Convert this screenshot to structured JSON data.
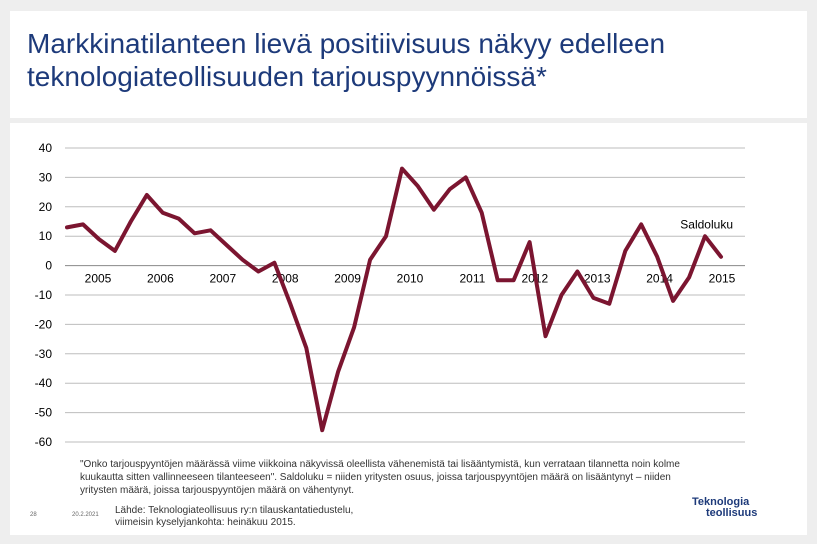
{
  "header": {
    "title_line1": "Markkinatilanteen lievä positiivisuus näkyy edelleen",
    "title_line2": "teknologiateollisuuden tarjouspyynnöissä*"
  },
  "chart_data": {
    "type": "line",
    "title": "",
    "xlabel": "",
    "ylabel": "",
    "ylim": [
      -60,
      40
    ],
    "yticks": [
      40,
      30,
      20,
      10,
      0,
      -10,
      -20,
      -30,
      -40,
      -50,
      -60
    ],
    "year_labels": [
      "2005",
      "2006",
      "2007",
      "2008",
      "2009",
      "2010",
      "2011",
      "2012",
      "2013",
      "2014",
      "2015"
    ],
    "series": [
      {
        "name": "Saldoluku",
        "color": "#7b1530",
        "values": [
          13,
          14,
          9,
          5,
          15,
          24,
          18,
          16,
          11,
          12,
          7,
          2,
          -2,
          1,
          -13,
          -28,
          -56,
          -36,
          -21,
          2,
          10,
          33,
          27,
          19,
          26,
          30,
          18,
          -5,
          -5,
          8,
          -24,
          -10,
          -2,
          -11,
          -13,
          5,
          14,
          3,
          -12,
          -4,
          10,
          3
        ]
      }
    ]
  },
  "footer": {
    "note": "\"Onko tarjouspyyntöjen määrässä viime viikkoina näkyvissä oleellista vähenemistä tai lisääntymistä, kun verrataan tilannetta noin kolme kuukautta sitten vallinneeseen tilanteeseen\". Saldoluku = niiden yritysten osuus, joissa tarjouspyyntöjen määrä on lisääntynyt – niiden yritysten määrä, joissa tarjouspyyntöjen määrä on vähentynyt.",
    "source_line1": "Lähde: Teknologiateollisuus ry:n tilauskantatiedustelu,",
    "source_line2": "viimeisin kyselyjankohta: heinäkuu 2015.",
    "page_number": "28",
    "date": "20.2.2021",
    "logo_line1": "Teknologia",
    "logo_line2": "teollisuus"
  }
}
